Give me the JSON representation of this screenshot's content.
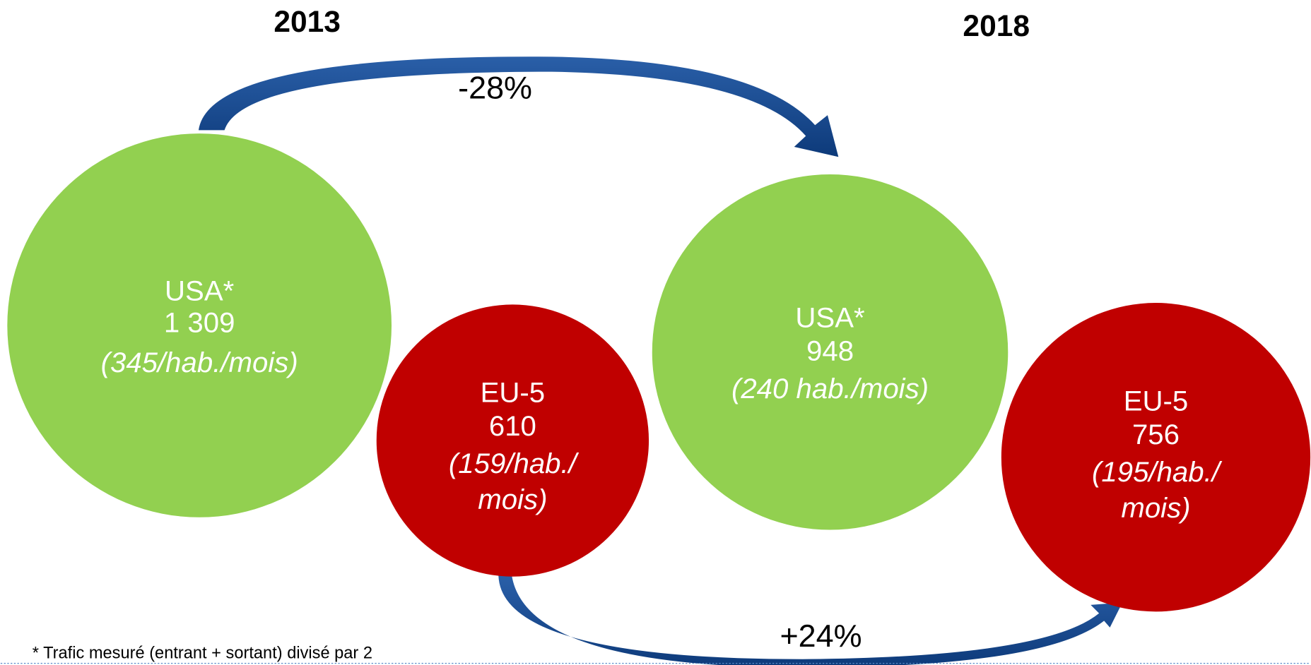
{
  "years": [
    "2013",
    "2018"
  ],
  "circles": [
    {
      "label": "USA*",
      "value": "1 309",
      "note_lines": [
        "(345/hab./mois)"
      ]
    },
    {
      "label": "EU-5",
      "value": "610",
      "note_lines": [
        "(159/hab./",
        "mois)"
      ]
    },
    {
      "label": "USA*",
      "value": "948",
      "note_lines": [
        "(240 hab./mois)"
      ]
    },
    {
      "label": "EU-5",
      "value": "756",
      "note_lines": [
        "(195/hab./",
        "mois)"
      ]
    }
  ],
  "changes": [
    "-28%",
    "+24%"
  ],
  "footnote": "* Trafic mesuré (entrant + sortant) divisé par 2"
}
